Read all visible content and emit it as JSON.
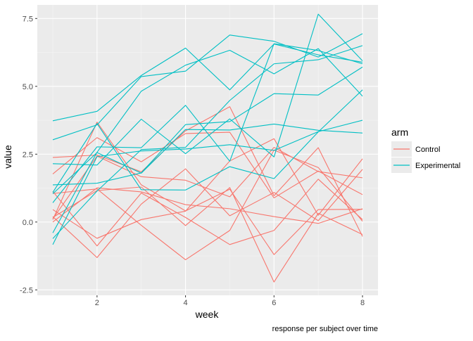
{
  "chart_data": {
    "type": "line",
    "title": "",
    "xlabel": "week",
    "ylabel": "value",
    "caption": "response per subject over time",
    "xlim": [
      0.65,
      8.35
    ],
    "ylim": [
      -2.7,
      8.0
    ],
    "x_ticks": [
      2,
      4,
      6,
      8
    ],
    "x_tick_labels": [
      "2",
      "4",
      "6",
      "8"
    ],
    "y_ticks": [
      -2.5,
      0,
      2.5,
      5,
      7.5
    ],
    "y_tick_labels": [
      "-2.5",
      "0.0",
      "2.5",
      "5.0",
      "7.5"
    ],
    "grid": true,
    "legend": {
      "title": "arm",
      "position": "right",
      "entries": [
        {
          "label": "Control",
          "color": "#F8766D"
        },
        {
          "label": "Experimental",
          "color": "#00BFC4"
        }
      ]
    },
    "x": [
      1,
      2,
      3,
      4,
      5,
      6,
      7,
      8
    ],
    "series": [
      {
        "arm": "Control",
        "values": [
          0.2,
          -1.31,
          0.66,
          1.96,
          0.23,
          1.09,
          0.05,
          1.94
        ]
      },
      {
        "arm": "Control",
        "values": [
          1.13,
          -0.88,
          1.07,
          0.17,
          -0.83,
          -0.31,
          1.58,
          0.09
        ]
      },
      {
        "arm": "Control",
        "values": [
          1.77,
          3.11,
          2.22,
          3.26,
          3.31,
          0.89,
          1.88,
          1.01
        ]
      },
      {
        "arm": "Control",
        "values": [
          0.12,
          2.43,
          1.67,
          1.54,
          0.93,
          2.75,
          1.86,
          1.63
        ]
      },
      {
        "arm": "Control",
        "values": [
          2.38,
          2.47,
          1.85,
          3.36,
          4.25,
          0.97,
          2.74,
          -0.53
        ]
      },
      {
        "arm": "Control",
        "values": [
          0.17,
          1.16,
          1.29,
          -0.13,
          1.27,
          -2.21,
          0.32,
          -0.46
        ]
      },
      {
        "arm": "Control",
        "values": [
          0.46,
          -0.6,
          0.09,
          0.4,
          2.25,
          3.07,
          0.25,
          2.33
        ]
      },
      {
        "arm": "Control",
        "values": [
          0.09,
          3.68,
          1.37,
          0.41,
          1.21,
          -1.2,
          0.46,
          0.47
        ]
      },
      {
        "arm": "Control",
        "values": [
          0.0,
          1.26,
          1.11,
          0.64,
          0.49,
          0.2,
          -0.05,
          0.49
        ]
      },
      {
        "arm": "Control",
        "values": [
          1.05,
          1.22,
          -0.12,
          -1.39,
          -0.31,
          2.65,
          2.01,
          0.03
        ]
      },
      {
        "arm": "Experimental",
        "values": [
          3.73,
          4.08,
          5.4,
          6.41,
          4.87,
          6.56,
          6.16,
          5.89
        ]
      },
      {
        "arm": "Experimental",
        "values": [
          1.37,
          1.43,
          1.81,
          3.59,
          3.7,
          4.73,
          4.68,
          5.71
        ]
      },
      {
        "arm": "Experimental",
        "values": [
          0.71,
          2.77,
          2.74,
          4.3,
          2.24,
          6.57,
          6.32,
          5.83
        ]
      },
      {
        "arm": "Experimental",
        "values": [
          -0.4,
          2.57,
          4.82,
          5.78,
          6.33,
          5.46,
          6.39,
          4.64
        ]
      },
      {
        "arm": "Experimental",
        "values": [
          -0.83,
          2.41,
          2.62,
          2.69,
          2.85,
          2.64,
          3.33,
          3.75
        ]
      },
      {
        "arm": "Experimental",
        "values": [
          1.09,
          3.63,
          1.19,
          1.18,
          2.04,
          1.6,
          3.32,
          4.87
        ]
      },
      {
        "arm": "Experimental",
        "values": [
          3.03,
          3.58,
          5.36,
          5.56,
          6.89,
          6.66,
          6.08,
          6.94
        ]
      },
      {
        "arm": "Experimental",
        "values": [
          -0.61,
          1.14,
          2.67,
          2.75,
          4.48,
          5.83,
          5.98,
          6.5
        ]
      },
      {
        "arm": "Experimental",
        "values": [
          1.04,
          2.56,
          1.8,
          3.41,
          3.39,
          3.61,
          3.38,
          3.28
        ]
      },
      {
        "arm": "Experimental",
        "values": [
          2.15,
          2.1,
          3.79,
          2.52,
          3.8,
          2.4,
          7.66,
          5.94
        ]
      }
    ]
  }
}
